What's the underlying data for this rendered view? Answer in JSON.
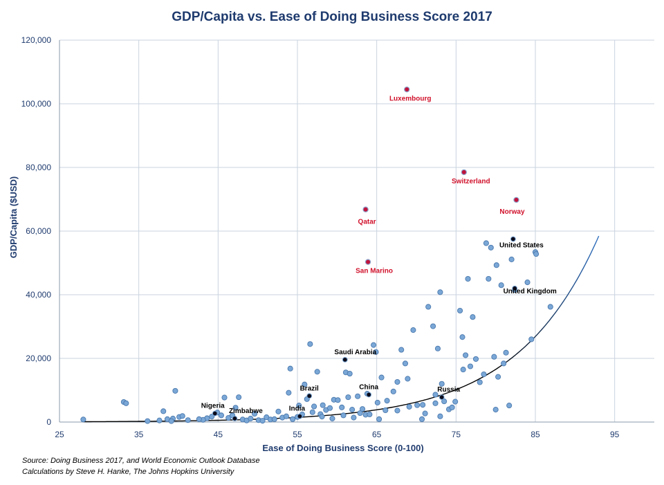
{
  "chart_data": {
    "type": "scatter",
    "title": "GDP/Capita vs. Ease of Doing Business Score 2017",
    "xlabel": "Ease of Doing Business Score (0-100)",
    "ylabel": "GDP/Capita ($USD)",
    "xlim": [
      25,
      100
    ],
    "ylim": [
      0,
      120000
    ],
    "xticks": [
      25,
      35,
      45,
      55,
      65,
      75,
      85,
      95
    ],
    "yticks": [
      0,
      20000,
      40000,
      60000,
      80000,
      100000,
      120000
    ],
    "ytick_labels": [
      "0",
      "20,000",
      "40,000",
      "60,000",
      "80,000",
      "100,000",
      "120,000"
    ],
    "grid": true,
    "colors": {
      "point": "#7aa7d6",
      "outlier": "#c0143c",
      "trend": "#2f6fbf",
      "label_highlight": "#d0102a",
      "label_normal": "#000000",
      "axis_text": "#1f3b6e"
    },
    "labeled_points": [
      {
        "name": "Luxembourg",
        "x": 68.8,
        "y": 104500,
        "outlier": true
      },
      {
        "name": "Switzerland",
        "x": 76.0,
        "y": 78500,
        "outlier": true
      },
      {
        "name": "Norway",
        "x": 82.6,
        "y": 69800,
        "outlier": true
      },
      {
        "name": "Qatar",
        "x": 63.6,
        "y": 66800,
        "outlier": true
      },
      {
        "name": "San Marino",
        "x": 63.9,
        "y": 50300,
        "outlier": true
      },
      {
        "name": "United States",
        "x": 82.2,
        "y": 57500,
        "outlier": false
      },
      {
        "name": "United Kingdom",
        "x": 82.4,
        "y": 42000,
        "outlier": false
      },
      {
        "name": "Saudi Arabia",
        "x": 61.0,
        "y": 19600,
        "outlier": false
      },
      {
        "name": "China",
        "x": 64.0,
        "y": 8600,
        "outlier": false
      },
      {
        "name": "Russia",
        "x": 73.2,
        "y": 7800,
        "outlier": false
      },
      {
        "name": "Brazil",
        "x": 56.5,
        "y": 8200,
        "outlier": false
      },
      {
        "name": "India",
        "x": 55.3,
        "y": 1800,
        "outlier": false
      },
      {
        "name": "Nigeria",
        "x": 44.6,
        "y": 2700,
        "outlier": false
      },
      {
        "name": "Zimbabwe",
        "x": 47.1,
        "y": 1100,
        "outlier": false
      }
    ],
    "points": [
      [
        28.0,
        800
      ],
      [
        33.1,
        6300
      ],
      [
        33.4,
        5900
      ],
      [
        36.1,
        300
      ],
      [
        37.6,
        500
      ],
      [
        38.1,
        3400
      ],
      [
        38.6,
        900
      ],
      [
        39.3,
        1100
      ],
      [
        39.6,
        9800
      ],
      [
        40.1,
        1600
      ],
      [
        40.5,
        1900
      ],
      [
        41.2,
        600
      ],
      [
        43.6,
        1200
      ],
      [
        44.2,
        1700
      ],
      [
        44.9,
        3000
      ],
      [
        45.4,
        2100
      ],
      [
        45.8,
        7700
      ],
      [
        46.3,
        1300
      ],
      [
        47.2,
        4500
      ],
      [
        47.6,
        7800
      ],
      [
        48.1,
        800
      ],
      [
        48.6,
        500
      ],
      [
        49.1,
        1100
      ],
      [
        49.6,
        2600
      ],
      [
        50.1,
        600
      ],
      [
        50.6,
        400
      ],
      [
        51.1,
        1500
      ],
      [
        51.6,
        800
      ],
      [
        52.1,
        900
      ],
      [
        52.6,
        3300
      ],
      [
        53.1,
        1400
      ],
      [
        53.6,
        1800
      ],
      [
        53.9,
        9200
      ],
      [
        54.1,
        16800
      ],
      [
        54.4,
        900
      ],
      [
        55.0,
        1600
      ],
      [
        55.6,
        2400
      ],
      [
        55.9,
        11800
      ],
      [
        56.2,
        7200
      ],
      [
        56.6,
        24500
      ],
      [
        57.1,
        4900
      ],
      [
        57.5,
        15800
      ],
      [
        57.9,
        2500
      ],
      [
        58.2,
        5300
      ],
      [
        58.6,
        3800
      ],
      [
        59.1,
        4400
      ],
      [
        59.6,
        7000
      ],
      [
        60.1,
        6900
      ],
      [
        60.6,
        4600
      ],
      [
        61.1,
        15600
      ],
      [
        61.6,
        15200
      ],
      [
        61.9,
        3900
      ],
      [
        62.6,
        8100
      ],
      [
        62.9,
        2800
      ],
      [
        63.2,
        4100
      ],
      [
        63.6,
        2300
      ],
      [
        64.1,
        2400
      ],
      [
        64.6,
        24200
      ],
      [
        64.9,
        22000
      ],
      [
        65.1,
        6100
      ],
      [
        65.6,
        14000
      ],
      [
        66.1,
        3700
      ],
      [
        67.1,
        9600
      ],
      [
        67.6,
        12600
      ],
      [
        68.1,
        22700
      ],
      [
        68.6,
        18400
      ],
      [
        68.9,
        13600
      ],
      [
        69.6,
        28900
      ],
      [
        70.1,
        5300
      ],
      [
        70.8,
        5400
      ],
      [
        71.5,
        36200
      ],
      [
        72.1,
        30100
      ],
      [
        72.4,
        5900
      ],
      [
        72.7,
        23100
      ],
      [
        73.0,
        40800
      ],
      [
        73.2,
        12000
      ],
      [
        73.5,
        6500
      ],
      [
        74.1,
        4000
      ],
      [
        74.5,
        4600
      ],
      [
        74.9,
        6400
      ],
      [
        75.5,
        35000
      ],
      [
        75.8,
        26700
      ],
      [
        75.9,
        16500
      ],
      [
        76.2,
        21000
      ],
      [
        76.5,
        45000
      ],
      [
        76.8,
        17500
      ],
      [
        77.1,
        33000
      ],
      [
        77.5,
        19800
      ],
      [
        78.0,
        12500
      ],
      [
        78.5,
        15000
      ],
      [
        78.8,
        56200
      ],
      [
        79.1,
        45000
      ],
      [
        79.4,
        54800
      ],
      [
        79.8,
        20500
      ],
      [
        80.1,
        49300
      ],
      [
        80.3,
        14200
      ],
      [
        80.7,
        43000
      ],
      [
        81.0,
        18400
      ],
      [
        81.3,
        21800
      ],
      [
        81.7,
        5200
      ],
      [
        82.0,
        51100
      ],
      [
        82.4,
        41500
      ],
      [
        84.0,
        43900
      ],
      [
        84.5,
        26000
      ],
      [
        85.0,
        53400
      ],
      [
        85.1,
        52800
      ],
      [
        86.9,
        36200
      ],
      [
        80.0,
        3900
      ],
      [
        73.0,
        1800
      ],
      [
        70.7,
        900
      ],
      [
        58.1,
        1700
      ],
      [
        60.8,
        2100
      ],
      [
        62.1,
        1400
      ],
      [
        65.3,
        900
      ],
      [
        67.6,
        3600
      ],
      [
        69.1,
        4800
      ],
      [
        71.1,
        2700
      ],
      [
        72.4,
        8600
      ],
      [
        46.8,
        2100
      ],
      [
        43.1,
        700
      ],
      [
        42.6,
        900
      ],
      [
        39.1,
        300
      ],
      [
        55.2,
        5200
      ],
      [
        56.9,
        3100
      ],
      [
        59.4,
        1100
      ],
      [
        61.4,
        7800
      ],
      [
        63.8,
        8900
      ],
      [
        66.3,
        6700
      ]
    ],
    "trend": {
      "type": "exponential",
      "a": 7.0,
      "b": 0.0971,
      "x_range": [
        28,
        93
      ]
    }
  },
  "source_lines": [
    "Source: Doing Business 2017, and World Economic Outlook Database",
    "Calculations by Steve H. Hanke, The Johns Hopkins University"
  ]
}
